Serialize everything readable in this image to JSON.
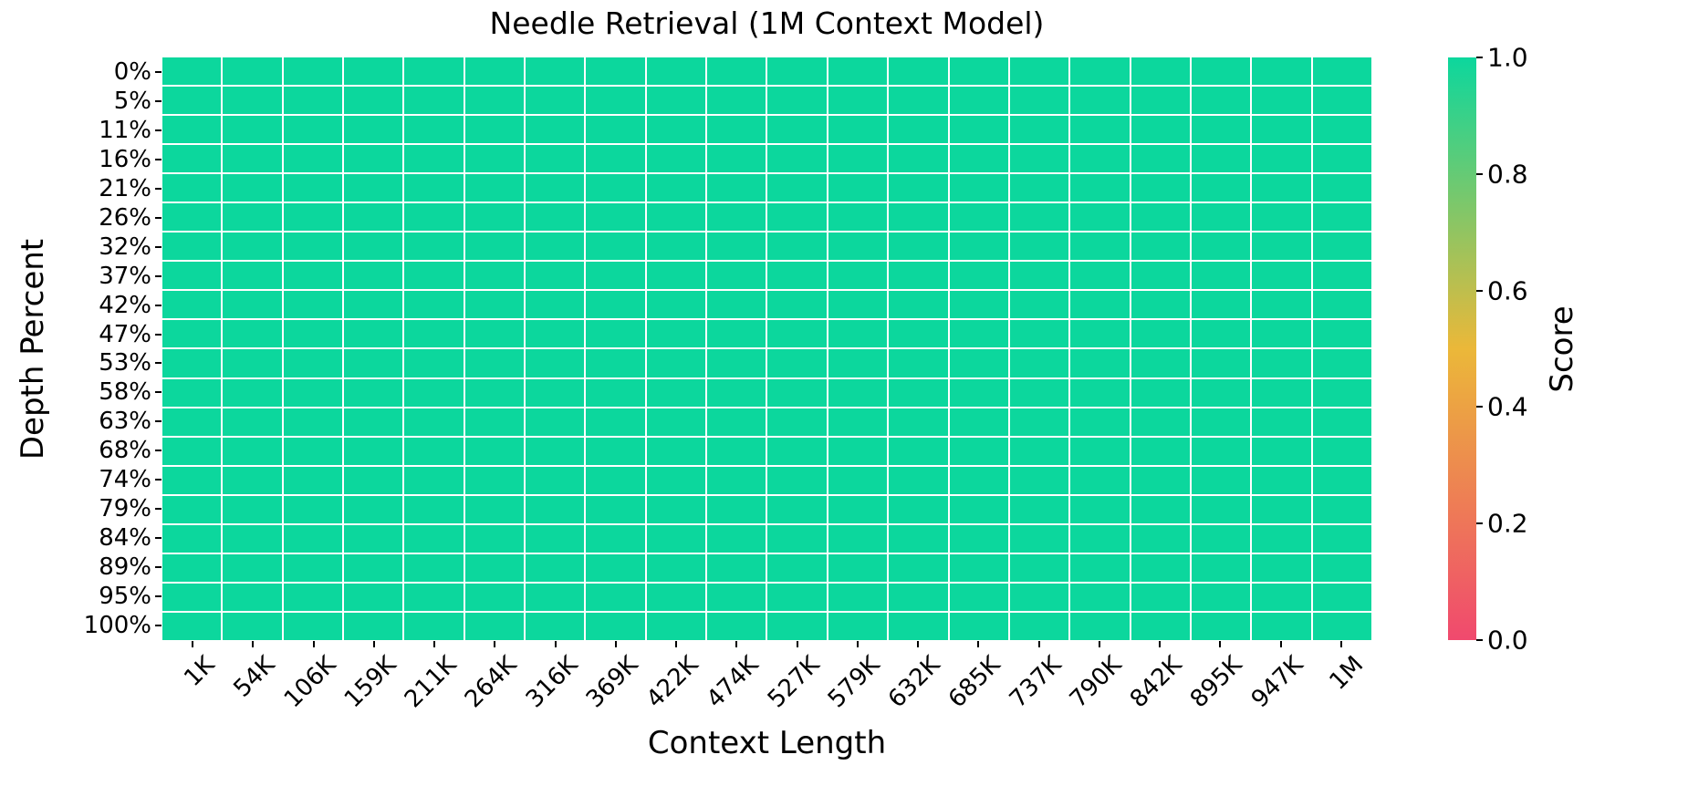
{
  "figure": {
    "background_color": "#ffffff",
    "text_color": "#000000"
  },
  "chart_data": {
    "type": "heatmap",
    "title": "Needle Retrieval (1M Context Model)",
    "xlabel": "Context Length",
    "ylabel": "Depth Percent",
    "x_categories": [
      "1K",
      "54K",
      "106K",
      "159K",
      "211K",
      "264K",
      "316K",
      "369K",
      "422K",
      "474K",
      "527K",
      "579K",
      "632K",
      "685K",
      "737K",
      "790K",
      "842K",
      "895K",
      "947K",
      "1M"
    ],
    "y_categories": [
      "0%",
      "5%",
      "11%",
      "16%",
      "21%",
      "26%",
      "32%",
      "37%",
      "42%",
      "47%",
      "53%",
      "58%",
      "63%",
      "68%",
      "74%",
      "79%",
      "84%",
      "89%",
      "95%",
      "100%"
    ],
    "values": [
      [
        1,
        1,
        1,
        1,
        1,
        1,
        1,
        1,
        1,
        1,
        1,
        1,
        1,
        1,
        1,
        1,
        1,
        1,
        1,
        1
      ],
      [
        1,
        1,
        1,
        1,
        1,
        1,
        1,
        1,
        1,
        1,
        1,
        1,
        1,
        1,
        1,
        1,
        1,
        1,
        1,
        1
      ],
      [
        1,
        1,
        1,
        1,
        1,
        1,
        1,
        1,
        1,
        1,
        1,
        1,
        1,
        1,
        1,
        1,
        1,
        1,
        1,
        1
      ],
      [
        1,
        1,
        1,
        1,
        1,
        1,
        1,
        1,
        1,
        1,
        1,
        1,
        1,
        1,
        1,
        1,
        1,
        1,
        1,
        1
      ],
      [
        1,
        1,
        1,
        1,
        1,
        1,
        1,
        1,
        1,
        1,
        1,
        1,
        1,
        1,
        1,
        1,
        1,
        1,
        1,
        1
      ],
      [
        1,
        1,
        1,
        1,
        1,
        1,
        1,
        1,
        1,
        1,
        1,
        1,
        1,
        1,
        1,
        1,
        1,
        1,
        1,
        1
      ],
      [
        1,
        1,
        1,
        1,
        1,
        1,
        1,
        1,
        1,
        1,
        1,
        1,
        1,
        1,
        1,
        1,
        1,
        1,
        1,
        1
      ],
      [
        1,
        1,
        1,
        1,
        1,
        1,
        1,
        1,
        1,
        1,
        1,
        1,
        1,
        1,
        1,
        1,
        1,
        1,
        1,
        1
      ],
      [
        1,
        1,
        1,
        1,
        1,
        1,
        1,
        1,
        1,
        1,
        1,
        1,
        1,
        1,
        1,
        1,
        1,
        1,
        1,
        1
      ],
      [
        1,
        1,
        1,
        1,
        1,
        1,
        1,
        1,
        1,
        1,
        1,
        1,
        1,
        1,
        1,
        1,
        1,
        1,
        1,
        1
      ],
      [
        1,
        1,
        1,
        1,
        1,
        1,
        1,
        1,
        1,
        1,
        1,
        1,
        1,
        1,
        1,
        1,
        1,
        1,
        1,
        1
      ],
      [
        1,
        1,
        1,
        1,
        1,
        1,
        1,
        1,
        1,
        1,
        1,
        1,
        1,
        1,
        1,
        1,
        1,
        1,
        1,
        1
      ],
      [
        1,
        1,
        1,
        1,
        1,
        1,
        1,
        1,
        1,
        1,
        1,
        1,
        1,
        1,
        1,
        1,
        1,
        1,
        1,
        1
      ],
      [
        1,
        1,
        1,
        1,
        1,
        1,
        1,
        1,
        1,
        1,
        1,
        1,
        1,
        1,
        1,
        1,
        1,
        1,
        1,
        1
      ],
      [
        1,
        1,
        1,
        1,
        1,
        1,
        1,
        1,
        1,
        1,
        1,
        1,
        1,
        1,
        1,
        1,
        1,
        1,
        1,
        1
      ],
      [
        1,
        1,
        1,
        1,
        1,
        1,
        1,
        1,
        1,
        1,
        1,
        1,
        1,
        1,
        1,
        1,
        1,
        1,
        1,
        1
      ],
      [
        1,
        1,
        1,
        1,
        1,
        1,
        1,
        1,
        1,
        1,
        1,
        1,
        1,
        1,
        1,
        1,
        1,
        1,
        1,
        1
      ],
      [
        1,
        1,
        1,
        1,
        1,
        1,
        1,
        1,
        1,
        1,
        1,
        1,
        1,
        1,
        1,
        1,
        1,
        1,
        1,
        1
      ],
      [
        1,
        1,
        1,
        1,
        1,
        1,
        1,
        1,
        1,
        1,
        1,
        1,
        1,
        1,
        1,
        1,
        1,
        1,
        1,
        1
      ],
      [
        1,
        1,
        1,
        1,
        1,
        1,
        1,
        1,
        1,
        1,
        1,
        1,
        1,
        1,
        1,
        1,
        1,
        1,
        1,
        1
      ]
    ],
    "value_range": [
      0.0,
      1.0
    ],
    "grid_line_color": "#ffffff",
    "colorbar": {
      "label": "Score",
      "tick_labels": [
        "1.0",
        "0.8",
        "0.6",
        "0.4",
        "0.2",
        "0.0"
      ],
      "tick_values": [
        1.0,
        0.8,
        0.6,
        0.4,
        0.2,
        0.0
      ],
      "colormap_stops": [
        [
          0.0,
          "#F0496E"
        ],
        [
          0.5,
          "#EBB839"
        ],
        [
          1.0,
          "#0CD79D"
        ]
      ]
    }
  }
}
